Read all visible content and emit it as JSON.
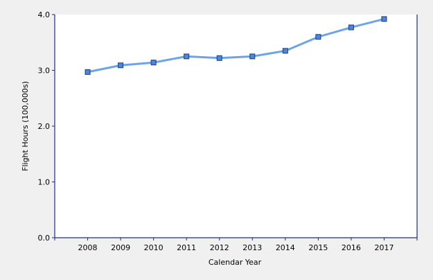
{
  "chart_data": {
    "type": "line",
    "title": "",
    "xlabel": "Calendar Year",
    "ylabel": "Flight Hours (100,000s)",
    "categories": [
      "2008",
      "2009",
      "2010",
      "2011",
      "2012",
      "2013",
      "2014",
      "2015",
      "2016",
      "2017"
    ],
    "series": [
      {
        "values": [
          2.97,
          3.09,
          3.14,
          3.25,
          3.22,
          3.25,
          3.35,
          3.6,
          3.77,
          3.92
        ]
      }
    ],
    "ylim": [
      0,
      4
    ],
    "yticks": [
      "0.0",
      "1.0",
      "2.0",
      "3.0",
      "4.0"
    ],
    "grid": false,
    "legend": "none",
    "marker": "square",
    "colors": {
      "line": "#6CA4E8",
      "marker_fill": "#4A86E0",
      "marker_stroke": "#1F3E6E",
      "axis": "#1C2A8C",
      "plot_background": "#FFFFFF",
      "page_background": "#F0F0F0"
    }
  }
}
